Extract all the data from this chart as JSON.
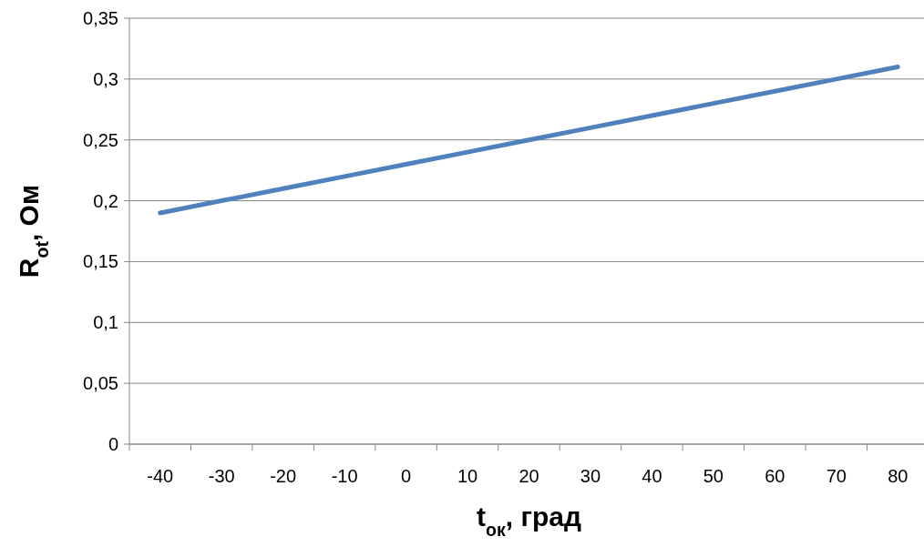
{
  "chart_data": {
    "type": "line",
    "xlabel": "t$_{ок}$, град",
    "ylabel": "R$_{ot}$, Ом",
    "categories": [
      "-40",
      "-30",
      "-20",
      "-10",
      "0",
      "10",
      "20",
      "30",
      "40",
      "50",
      "60",
      "70",
      "80"
    ],
    "series": [
      {
        "color": "#4f81bd",
        "values": [
          0.19,
          0.2,
          0.21,
          0.22,
          0.23,
          0.24,
          0.25,
          0.26,
          0.27,
          0.28,
          0.29,
          0.3,
          0.31
        ]
      }
    ],
    "ylim": [
      0,
      0.35
    ],
    "yticks": [
      {
        "value": 0,
        "label": "0"
      },
      {
        "value": 0.05,
        "label": "0,05"
      },
      {
        "value": 0.1,
        "label": "0,1"
      },
      {
        "value": 0.15,
        "label": "0,15"
      },
      {
        "value": 0.2,
        "label": "0,2"
      },
      {
        "value": 0.25,
        "label": "0,25"
      },
      {
        "value": 0.3,
        "label": "0,3"
      },
      {
        "value": 0.35,
        "label": "0,35"
      }
    ],
    "grid": "y",
    "marker": "none",
    "line_style": "solid"
  }
}
